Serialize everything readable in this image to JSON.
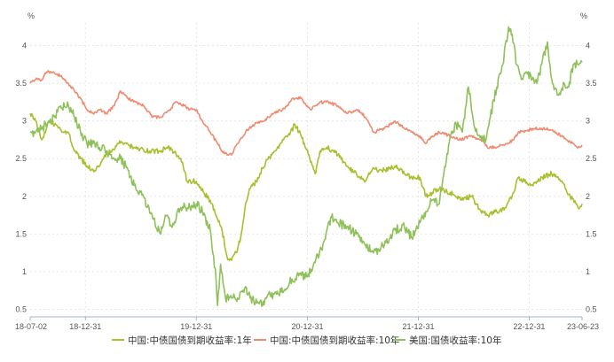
{
  "chart_data": {
    "type": "line",
    "y_unit_left": "%",
    "y_unit_right": "%",
    "ylim": [
      0.4,
      4.3
    ],
    "y_ticks": [
      0.5,
      1,
      1.5,
      2,
      2.5,
      3,
      3.5,
      4
    ],
    "y_tick_labels": [
      "0.5",
      "1",
      "1.5",
      "2",
      "2.5",
      "3",
      "3.5",
      "4"
    ],
    "x_range": [
      "2018-07-02",
      "2023-06-23"
    ],
    "x_ticks": [
      {
        "date": "2018-07-02",
        "label": "18-07-02"
      },
      {
        "date": "2018-12-31",
        "label": "18-12-31"
      },
      {
        "date": "2019-12-31",
        "label": "19-12-31"
      },
      {
        "date": "2020-12-31",
        "label": "20-12-31"
      },
      {
        "date": "2021-12-31",
        "label": "21-12-31"
      },
      {
        "date": "2022-12-31",
        "label": "22-12-31"
      },
      {
        "date": "2023-06-23",
        "label": "23-06-23"
      }
    ],
    "grid": true,
    "legend_position": "bottom",
    "series": [
      {
        "name": "中国:中债国债到期收益率:1年",
        "color": "#a9bf2e",
        "points": [
          [
            "2018-07-02",
            3.1
          ],
          [
            "2018-07-20",
            3.0
          ],
          [
            "2018-08-10",
            2.75
          ],
          [
            "2018-09-01",
            3.0
          ],
          [
            "2018-09-25",
            2.95
          ],
          [
            "2018-10-15",
            2.85
          ],
          [
            "2018-11-05",
            2.85
          ],
          [
            "2018-11-25",
            2.6
          ],
          [
            "2018-12-15",
            2.5
          ],
          [
            "2019-01-05",
            2.4
          ],
          [
            "2019-01-25",
            2.35
          ],
          [
            "2019-02-15",
            2.4
          ],
          [
            "2019-03-05",
            2.55
          ],
          [
            "2019-03-25",
            2.6
          ],
          [
            "2019-04-20",
            2.7
          ],
          [
            "2019-05-15",
            2.7
          ],
          [
            "2019-06-10",
            2.65
          ],
          [
            "2019-07-10",
            2.62
          ],
          [
            "2019-08-05",
            2.6
          ],
          [
            "2019-09-01",
            2.6
          ],
          [
            "2019-09-25",
            2.65
          ],
          [
            "2019-10-20",
            2.58
          ],
          [
            "2019-11-10",
            2.5
          ],
          [
            "2019-12-01",
            2.2
          ],
          [
            "2019-12-31",
            2.2
          ],
          [
            "2020-01-25",
            2.05
          ],
          [
            "2020-02-20",
            1.9
          ],
          [
            "2020-03-10",
            1.7
          ],
          [
            "2020-03-25",
            1.55
          ],
          [
            "2020-04-10",
            1.2
          ],
          [
            "2020-04-25",
            1.15
          ],
          [
            "2020-05-15",
            1.3
          ],
          [
            "2020-05-25",
            1.45
          ],
          [
            "2020-06-10",
            1.9
          ],
          [
            "2020-06-25",
            2.1
          ],
          [
            "2020-07-15",
            2.2
          ],
          [
            "2020-08-15",
            2.45
          ],
          [
            "2020-09-15",
            2.6
          ],
          [
            "2020-10-10",
            2.75
          ],
          [
            "2020-11-05",
            2.85
          ],
          [
            "2020-11-20",
            2.95
          ],
          [
            "2020-12-10",
            2.8
          ],
          [
            "2021-01-05",
            2.55
          ],
          [
            "2021-01-25",
            2.3
          ],
          [
            "2021-02-10",
            2.6
          ],
          [
            "2021-03-05",
            2.65
          ],
          [
            "2021-04-10",
            2.55
          ],
          [
            "2021-05-10",
            2.4
          ],
          [
            "2021-06-10",
            2.3
          ],
          [
            "2021-07-10",
            2.2
          ],
          [
            "2021-08-01",
            2.35
          ],
          [
            "2021-09-10",
            2.35
          ],
          [
            "2021-10-15",
            2.4
          ],
          [
            "2021-11-15",
            2.3
          ],
          [
            "2021-12-10",
            2.25
          ],
          [
            "2022-01-05",
            2.25
          ],
          [
            "2022-01-25",
            2.0
          ],
          [
            "2022-02-15",
            2.05
          ],
          [
            "2022-03-10",
            2.1
          ],
          [
            "2022-04-15",
            2.05
          ],
          [
            "2022-05-20",
            1.95
          ],
          [
            "2022-06-25",
            2.0
          ],
          [
            "2022-07-25",
            1.8
          ],
          [
            "2022-08-15",
            1.75
          ],
          [
            "2022-09-15",
            1.8
          ],
          [
            "2022-10-15",
            1.85
          ],
          [
            "2022-11-10",
            2.05
          ],
          [
            "2022-11-25",
            2.25
          ],
          [
            "2022-12-15",
            2.2
          ],
          [
            "2023-01-10",
            2.15
          ],
          [
            "2023-02-10",
            2.25
          ],
          [
            "2023-03-15",
            2.3
          ],
          [
            "2023-04-15",
            2.2
          ],
          [
            "2023-05-15",
            2.0
          ],
          [
            "2023-06-10",
            1.85
          ],
          [
            "2023-06-23",
            1.9
          ]
        ]
      },
      {
        "name": "中国:中债国债到期收益率:10年",
        "color": "#f08a70",
        "points": [
          [
            "2018-07-02",
            3.5
          ],
          [
            "2018-07-20",
            3.55
          ],
          [
            "2018-08-10",
            3.55
          ],
          [
            "2018-08-25",
            3.65
          ],
          [
            "2018-09-15",
            3.65
          ],
          [
            "2018-10-10",
            3.6
          ],
          [
            "2018-11-05",
            3.5
          ],
          [
            "2018-11-25",
            3.4
          ],
          [
            "2018-12-15",
            3.3
          ],
          [
            "2019-01-05",
            3.15
          ],
          [
            "2019-01-25",
            3.1
          ],
          [
            "2019-02-15",
            3.15
          ],
          [
            "2019-03-10",
            3.1
          ],
          [
            "2019-04-05",
            3.2
          ],
          [
            "2019-04-25",
            3.4
          ],
          [
            "2019-05-20",
            3.3
          ],
          [
            "2019-06-15",
            3.25
          ],
          [
            "2019-07-10",
            3.2
          ],
          [
            "2019-08-10",
            3.05
          ],
          [
            "2019-09-05",
            3.05
          ],
          [
            "2019-10-05",
            3.15
          ],
          [
            "2019-10-25",
            3.25
          ],
          [
            "2019-11-20",
            3.2
          ],
          [
            "2019-12-10",
            3.15
          ],
          [
            "2019-12-31",
            3.15
          ],
          [
            "2020-01-20",
            3.0
          ],
          [
            "2020-02-15",
            2.85
          ],
          [
            "2020-03-10",
            2.7
          ],
          [
            "2020-03-25",
            2.6
          ],
          [
            "2020-04-10",
            2.55
          ],
          [
            "2020-04-25",
            2.55
          ],
          [
            "2020-05-15",
            2.7
          ],
          [
            "2020-06-10",
            2.85
          ],
          [
            "2020-07-05",
            2.95
          ],
          [
            "2020-08-10",
            3.0
          ],
          [
            "2020-09-10",
            3.1
          ],
          [
            "2020-10-10",
            3.15
          ],
          [
            "2020-11-15",
            3.3
          ],
          [
            "2020-12-10",
            3.3
          ],
          [
            "2021-01-10",
            3.15
          ],
          [
            "2021-02-10",
            3.25
          ],
          [
            "2021-03-10",
            3.25
          ],
          [
            "2021-04-10",
            3.2
          ],
          [
            "2021-05-10",
            3.1
          ],
          [
            "2021-06-15",
            3.15
          ],
          [
            "2021-07-10",
            3.05
          ],
          [
            "2021-08-05",
            2.85
          ],
          [
            "2021-09-10",
            2.9
          ],
          [
            "2021-10-15",
            3.0
          ],
          [
            "2021-11-15",
            2.9
          ],
          [
            "2021-12-10",
            2.85
          ],
          [
            "2022-01-05",
            2.8
          ],
          [
            "2022-01-25",
            2.7
          ],
          [
            "2022-02-15",
            2.8
          ],
          [
            "2022-03-10",
            2.85
          ],
          [
            "2022-04-15",
            2.8
          ],
          [
            "2022-05-20",
            2.75
          ],
          [
            "2022-06-25",
            2.8
          ],
          [
            "2022-07-25",
            2.75
          ],
          [
            "2022-08-15",
            2.65
          ],
          [
            "2022-09-15",
            2.65
          ],
          [
            "2022-10-15",
            2.7
          ],
          [
            "2022-11-10",
            2.75
          ],
          [
            "2022-11-25",
            2.85
          ],
          [
            "2022-12-15",
            2.85
          ],
          [
            "2023-01-10",
            2.9
          ],
          [
            "2023-02-10",
            2.9
          ],
          [
            "2023-03-15",
            2.88
          ],
          [
            "2023-04-15",
            2.8
          ],
          [
            "2023-05-15",
            2.72
          ],
          [
            "2023-06-10",
            2.65
          ],
          [
            "2023-06-23",
            2.68
          ]
        ]
      },
      {
        "name": "美国:国债收益率:10年",
        "color": "#8fc15a",
        "points": [
          [
            "2018-07-02",
            2.85
          ],
          [
            "2018-07-20",
            2.85
          ],
          [
            "2018-08-10",
            2.9
          ],
          [
            "2018-09-01",
            3.0
          ],
          [
            "2018-09-20",
            3.05
          ],
          [
            "2018-10-10",
            3.2
          ],
          [
            "2018-11-05",
            3.2
          ],
          [
            "2018-11-25",
            3.05
          ],
          [
            "2018-12-15",
            2.85
          ],
          [
            "2019-01-05",
            2.7
          ],
          [
            "2019-01-25",
            2.7
          ],
          [
            "2019-02-15",
            2.65
          ],
          [
            "2019-03-10",
            2.6
          ],
          [
            "2019-04-05",
            2.5
          ],
          [
            "2019-04-25",
            2.5
          ],
          [
            "2019-05-20",
            2.35
          ],
          [
            "2019-06-15",
            2.1
          ],
          [
            "2019-07-10",
            2.0
          ],
          [
            "2019-08-10",
            1.7
          ],
          [
            "2019-09-05",
            1.5
          ],
          [
            "2019-09-20",
            1.75
          ],
          [
            "2019-10-10",
            1.6
          ],
          [
            "2019-11-10",
            1.85
          ],
          [
            "2019-12-10",
            1.85
          ],
          [
            "2019-12-31",
            1.9
          ],
          [
            "2020-01-20",
            1.8
          ],
          [
            "2020-02-15",
            1.55
          ],
          [
            "2020-03-05",
            0.9
          ],
          [
            "2020-03-10",
            0.55
          ],
          [
            "2020-03-20",
            1.1
          ],
          [
            "2020-04-05",
            0.65
          ],
          [
            "2020-04-25",
            0.65
          ],
          [
            "2020-05-15",
            0.65
          ],
          [
            "2020-06-10",
            0.8
          ],
          [
            "2020-06-25",
            0.65
          ],
          [
            "2020-07-20",
            0.6
          ],
          [
            "2020-08-05",
            0.55
          ],
          [
            "2020-08-25",
            0.7
          ],
          [
            "2020-09-20",
            0.7
          ],
          [
            "2020-10-15",
            0.75
          ],
          [
            "2020-11-10",
            0.9
          ],
          [
            "2020-12-10",
            0.95
          ],
          [
            "2020-12-31",
            0.93
          ],
          [
            "2021-01-20",
            1.1
          ],
          [
            "2021-02-15",
            1.3
          ],
          [
            "2021-03-05",
            1.55
          ],
          [
            "2021-03-20",
            1.72
          ],
          [
            "2021-04-10",
            1.65
          ],
          [
            "2021-05-10",
            1.6
          ],
          [
            "2021-06-10",
            1.5
          ],
          [
            "2021-07-10",
            1.35
          ],
          [
            "2021-08-05",
            1.25
          ],
          [
            "2021-09-10",
            1.35
          ],
          [
            "2021-10-15",
            1.55
          ],
          [
            "2021-11-15",
            1.6
          ],
          [
            "2021-12-10",
            1.45
          ],
          [
            "2022-01-05",
            1.65
          ],
          [
            "2022-01-25",
            1.8
          ],
          [
            "2022-02-15",
            1.95
          ],
          [
            "2022-03-10",
            1.9
          ],
          [
            "2022-03-25",
            2.3
          ],
          [
            "2022-04-15",
            2.8
          ],
          [
            "2022-05-05",
            2.95
          ],
          [
            "2022-05-25",
            2.85
          ],
          [
            "2022-06-14",
            3.45
          ],
          [
            "2022-07-05",
            2.9
          ],
          [
            "2022-07-25",
            2.8
          ],
          [
            "2022-08-10",
            2.75
          ],
          [
            "2022-08-25",
            3.05
          ],
          [
            "2022-09-15",
            3.45
          ],
          [
            "2022-10-05",
            3.75
          ],
          [
            "2022-10-24",
            4.25
          ],
          [
            "2022-11-05",
            4.15
          ],
          [
            "2022-11-20",
            3.75
          ],
          [
            "2022-12-05",
            3.55
          ],
          [
            "2022-12-20",
            3.65
          ],
          [
            "2023-01-10",
            3.55
          ],
          [
            "2023-01-25",
            3.5
          ],
          [
            "2023-02-10",
            3.75
          ],
          [
            "2023-03-01",
            4.05
          ],
          [
            "2023-03-15",
            3.55
          ],
          [
            "2023-04-05",
            3.35
          ],
          [
            "2023-04-25",
            3.5
          ],
          [
            "2023-05-10",
            3.45
          ],
          [
            "2023-05-25",
            3.75
          ],
          [
            "2023-06-10",
            3.75
          ],
          [
            "2023-06-23",
            3.78
          ]
        ]
      }
    ]
  }
}
